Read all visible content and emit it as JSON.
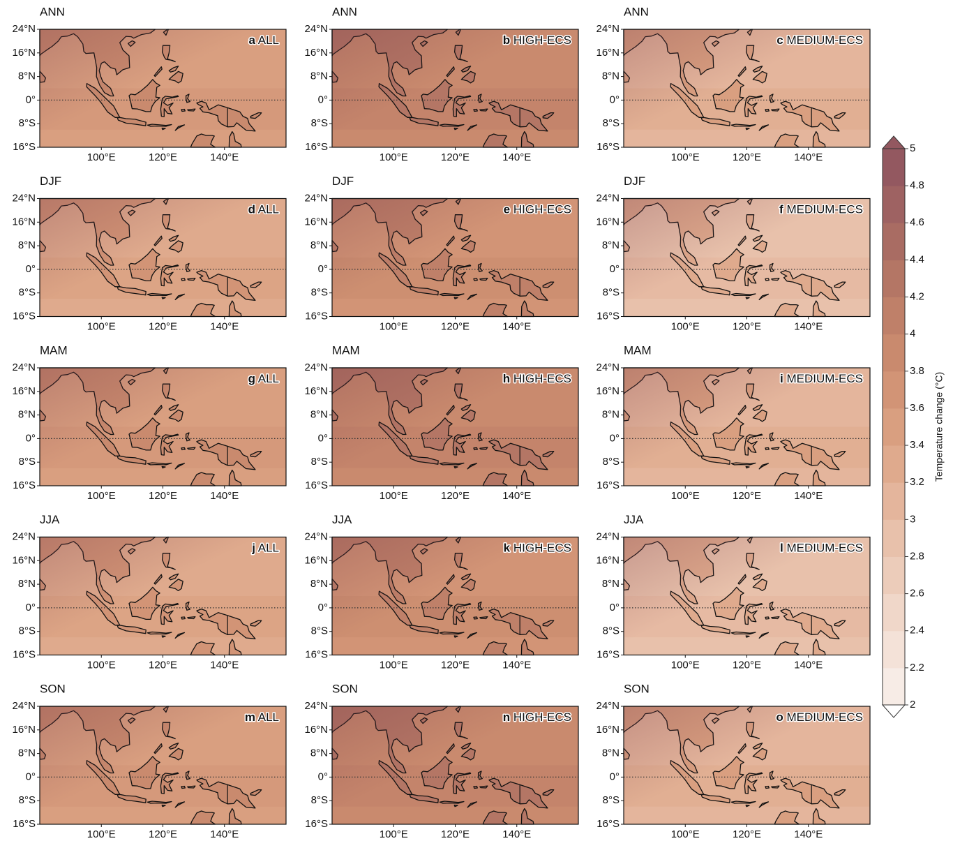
{
  "panels": [
    {
      "season": "ANN",
      "letter": "a",
      "label": "ALL"
    },
    {
      "season": "ANN",
      "letter": "b",
      "label": "HIGH-ECS"
    },
    {
      "season": "ANN",
      "letter": "c",
      "label": "MEDIUM-ECS"
    },
    {
      "season": "DJF",
      "letter": "d",
      "label": "ALL"
    },
    {
      "season": "DJF",
      "letter": "e",
      "label": "HIGH-ECS"
    },
    {
      "season": "DJF",
      "letter": "f",
      "label": "MEDIUM-ECS"
    },
    {
      "season": "MAM",
      "letter": "g",
      "label": "ALL"
    },
    {
      "season": "MAM",
      "letter": "h",
      "label": "HIGH-ECS"
    },
    {
      "season": "MAM",
      "letter": "i",
      "label": "MEDIUM-ECS"
    },
    {
      "season": "JJA",
      "letter": "j",
      "label": "ALL"
    },
    {
      "season": "JJA",
      "letter": "k",
      "label": "HIGH-ECS"
    },
    {
      "season": "JJA",
      "letter": "l",
      "label": "MEDIUM-ECS"
    },
    {
      "season": "SON",
      "letter": "m",
      "label": "ALL"
    },
    {
      "season": "SON",
      "letter": "n",
      "label": "HIGH-ECS"
    },
    {
      "season": "SON",
      "letter": "o",
      "label": "MEDIUM-ECS"
    }
  ],
  "lat_ticks": [
    {
      "value": 24,
      "label": "24°N"
    },
    {
      "value": 16,
      "label": "16°N"
    },
    {
      "value": 8,
      "label": "8°N"
    },
    {
      "value": 0,
      "label": "0°"
    },
    {
      "value": -8,
      "label": "8°S"
    },
    {
      "value": -16,
      "label": "16°S"
    }
  ],
  "lon_ticks": [
    {
      "value": 100,
      "label": "100°E"
    },
    {
      "value": 120,
      "label": "120°E"
    },
    {
      "value": 140,
      "label": "140°E"
    }
  ],
  "colorbar": {
    "label": "Temperature change (°C)",
    "ticks": [
      2,
      2.2,
      2.4,
      2.6,
      2.8,
      3,
      3.2,
      3.4,
      3.6,
      3.8,
      4,
      4.2,
      4.4,
      4.6,
      4.8,
      5
    ],
    "colors": [
      "#f7ece6",
      "#f4e2d8",
      "#f0d7c9",
      "#ecccba",
      "#e8c1ab",
      "#e4b59c",
      "#dfaa8d",
      "#d99f80",
      "#d29476",
      "#c98a6e",
      "#bf8069",
      "#b47665",
      "#a96c63",
      "#9e6262",
      "#935860"
    ]
  }
}
